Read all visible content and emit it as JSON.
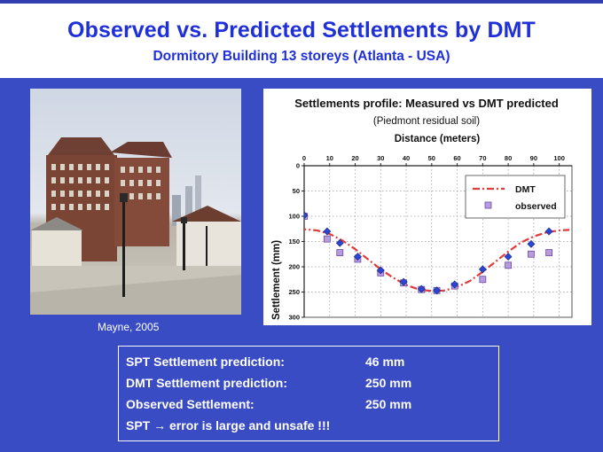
{
  "header": {
    "title": "Observed vs. Predicted Settlements by DMT",
    "subtitle": "Dormitory Building 13 storeys (Atlanta - USA)"
  },
  "photo": {
    "credit": "Mayne, 2005"
  },
  "chart_data": {
    "type": "scatter",
    "title": "Settlements profile: Measured vs DMT predicted",
    "subtitle": "(Piedmont residual soil)",
    "xlabel": "Distance (meters)",
    "ylabel": "Settlement (mm)",
    "xlim": [
      0,
      105
    ],
    "ylim": [
      300,
      0
    ],
    "x_ticks": [
      0,
      10,
      20,
      30,
      40,
      50,
      60,
      70,
      80,
      90,
      100
    ],
    "y_ticks": [
      0,
      50,
      100,
      150,
      200,
      250,
      300
    ],
    "grid": true,
    "legend": "top-right",
    "series": [
      {
        "name": "DMT",
        "kind": "dashed-line",
        "color": "#e03a3a",
        "x": [
          -2,
          5,
          10,
          15,
          20,
          25,
          30,
          35,
          40,
          45,
          50,
          55,
          60,
          65,
          70,
          75,
          80,
          85,
          90,
          95,
          100,
          104
        ],
        "y": [
          125,
          128,
          135,
          148,
          165,
          185,
          205,
          222,
          236,
          245,
          248,
          247,
          240,
          228,
          210,
          190,
          170,
          152,
          140,
          132,
          128,
          127
        ]
      },
      {
        "name": "observed",
        "kind": "square-marker",
        "color": "#b79be0",
        "x": [
          0,
          9,
          14,
          21,
          30,
          39,
          46,
          52,
          59,
          70,
          80,
          89,
          96
        ],
        "y": [
          100,
          145,
          172,
          185,
          212,
          232,
          245,
          247,
          238,
          225,
          197,
          175,
          172
        ]
      },
      {
        "name": "",
        "kind": "diamond-marker",
        "color": "#2b46d6",
        "x": [
          0,
          9,
          14,
          21,
          30,
          39,
          46,
          52,
          59,
          70,
          80,
          89,
          96
        ],
        "y": [
          98,
          130,
          153,
          180,
          207,
          230,
          244,
          247,
          235,
          205,
          180,
          155,
          130
        ]
      }
    ]
  },
  "summary": {
    "rows": [
      {
        "label": "SPT Settlement prediction:",
        "value": "46  mm"
      },
      {
        "label": "DMT Settlement prediction:",
        "value": "250   mm"
      },
      {
        "label": "Observed Settlement:",
        "value": "250   mm"
      },
      {
        "label": "SPT → error is large and unsafe !!!",
        "value": ""
      }
    ]
  }
}
